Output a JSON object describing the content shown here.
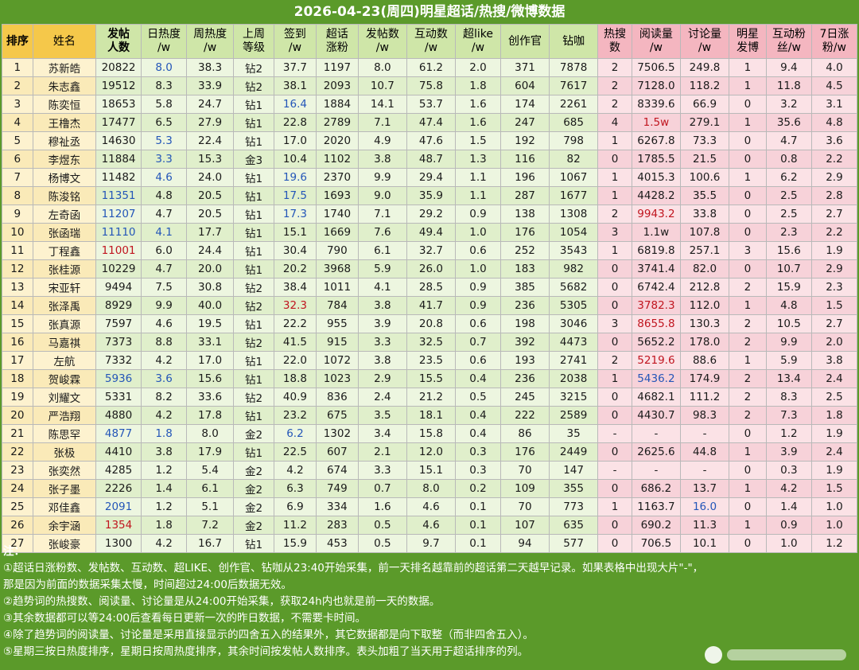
{
  "title": "2026-04-23(周四)明星超话/热搜/微博数据",
  "headers": [
    {
      "line1": "排序",
      "line2": "",
      "bg": "y",
      "bold": true
    },
    {
      "line1": "姓名",
      "line2": "",
      "bg": "y",
      "bold": false
    },
    {
      "line1": "发帖",
      "line2": "人数",
      "bg": "g",
      "bold": true
    },
    {
      "line1": "日热度",
      "line2": "/w",
      "bg": "g",
      "bold": false
    },
    {
      "line1": "周热度",
      "line2": "/w",
      "bg": "g",
      "bold": false
    },
    {
      "line1": "上周",
      "line2": "等级",
      "bg": "g",
      "bold": false
    },
    {
      "line1": "签到",
      "line2": "/w",
      "bg": "g",
      "bold": false
    },
    {
      "line1": "超话",
      "line2": "涨粉",
      "bg": "g",
      "bold": false
    },
    {
      "line1": "发帖数",
      "line2": "/w",
      "bg": "g",
      "bold": false
    },
    {
      "line1": "互动数",
      "line2": "/w",
      "bg": "g",
      "bold": false
    },
    {
      "line1": "超like",
      "line2": "/w",
      "bg": "g",
      "bold": false
    },
    {
      "line1": "创作官",
      "line2": "",
      "bg": "g",
      "bold": false
    },
    {
      "line1": "钻咖",
      "line2": "",
      "bg": "g",
      "bold": false
    },
    {
      "line1": "热搜",
      "line2": "数",
      "bg": "p",
      "bold": false
    },
    {
      "line1": "阅读量",
      "line2": "/w",
      "bg": "p",
      "bold": false
    },
    {
      "line1": "讨论量",
      "line2": "/w",
      "bg": "p",
      "bold": false
    },
    {
      "line1": "明星",
      "line2": "发博",
      "bg": "p",
      "bold": false
    },
    {
      "line1": "互动粉",
      "line2": "丝/w",
      "bg": "p",
      "bold": false
    },
    {
      "line1": "7日涨",
      "line2": "粉/w",
      "bg": "p",
      "bold": false
    }
  ],
  "rows": [
    [
      "1",
      "苏新皓",
      "20822",
      "8.0",
      "38.3",
      "钻2",
      "37.7",
      "1197",
      "8.0",
      "61.2",
      "2.0",
      "371",
      "7878",
      "2",
      "7506.5",
      "249.8",
      "1",
      "9.4",
      "4.0"
    ],
    [
      "2",
      "朱志鑫",
      "19512",
      "8.3",
      "33.9",
      "钻2",
      "38.1",
      "2093",
      "10.7",
      "75.8",
      "1.8",
      "604",
      "7617",
      "2",
      "7128.0",
      "118.2",
      "1",
      "11.8",
      "4.5"
    ],
    [
      "3",
      "陈奕恒",
      "18653",
      "5.8",
      "24.7",
      "钻1",
      "16.4",
      "1884",
      "14.1",
      "53.7",
      "1.6",
      "174",
      "2261",
      "2",
      "8339.6",
      "66.9",
      "0",
      "3.2",
      "3.1"
    ],
    [
      "4",
      "王橹杰",
      "17477",
      "6.5",
      "27.9",
      "钻1",
      "22.8",
      "2789",
      "7.1",
      "47.4",
      "1.6",
      "247",
      "685",
      "4",
      "1.5w",
      "279.1",
      "1",
      "35.6",
      "4.8"
    ],
    [
      "5",
      "穆祉丞",
      "14630",
      "5.3",
      "22.4",
      "钻1",
      "17.0",
      "2020",
      "4.9",
      "47.6",
      "1.5",
      "192",
      "798",
      "1",
      "6267.8",
      "73.3",
      "0",
      "4.7",
      "3.6"
    ],
    [
      "6",
      "李煜东",
      "11884",
      "3.3",
      "15.3",
      "金3",
      "10.4",
      "1102",
      "3.8",
      "48.7",
      "1.3",
      "116",
      "82",
      "0",
      "1785.5",
      "21.5",
      "0",
      "0.8",
      "2.2"
    ],
    [
      "7",
      "杨博文",
      "11482",
      "4.6",
      "24.0",
      "钻1",
      "19.6",
      "2370",
      "9.9",
      "29.4",
      "1.1",
      "196",
      "1067",
      "1",
      "4015.3",
      "100.6",
      "1",
      "6.2",
      "2.9"
    ],
    [
      "8",
      "陈浚铭",
      "11351",
      "4.8",
      "20.5",
      "钻1",
      "17.5",
      "1693",
      "9.0",
      "35.9",
      "1.1",
      "287",
      "1677",
      "1",
      "4428.2",
      "35.5",
      "0",
      "2.5",
      "2.8"
    ],
    [
      "9",
      "左奇函",
      "11207",
      "4.7",
      "20.5",
      "钻1",
      "17.3",
      "1740",
      "7.1",
      "29.2",
      "0.9",
      "138",
      "1308",
      "2",
      "9943.2",
      "33.8",
      "0",
      "2.5",
      "2.7"
    ],
    [
      "10",
      "张函瑞",
      "11110",
      "4.1",
      "17.7",
      "钻1",
      "15.1",
      "1669",
      "7.6",
      "49.4",
      "1.0",
      "176",
      "1054",
      "3",
      "1.1w",
      "107.8",
      "0",
      "2.3",
      "2.2"
    ],
    [
      "11",
      "丁程鑫",
      "11001",
      "6.0",
      "24.4",
      "钻1",
      "30.4",
      "790",
      "6.1",
      "32.7",
      "0.6",
      "252",
      "3543",
      "1",
      "6819.8",
      "257.1",
      "3",
      "15.6",
      "1.9"
    ],
    [
      "12",
      "张桂源",
      "10229",
      "4.7",
      "20.0",
      "钻1",
      "20.2",
      "3968",
      "5.9",
      "26.0",
      "1.0",
      "183",
      "982",
      "0",
      "3741.4",
      "82.0",
      "0",
      "10.7",
      "2.9"
    ],
    [
      "13",
      "宋亚轩",
      "9494",
      "7.5",
      "30.8",
      "钻2",
      "38.4",
      "1011",
      "4.1",
      "28.5",
      "0.9",
      "385",
      "5682",
      "0",
      "6742.4",
      "212.8",
      "2",
      "15.9",
      "2.3"
    ],
    [
      "14",
      "张泽禹",
      "8929",
      "9.9",
      "40.0",
      "钻2",
      "32.3",
      "784",
      "3.8",
      "41.7",
      "0.9",
      "236",
      "5305",
      "0",
      "3782.3",
      "112.0",
      "1",
      "4.8",
      "1.5"
    ],
    [
      "15",
      "张真源",
      "7597",
      "4.6",
      "19.5",
      "钻1",
      "22.2",
      "955",
      "3.9",
      "20.8",
      "0.6",
      "198",
      "3046",
      "3",
      "8655.8",
      "130.3",
      "2",
      "10.5",
      "2.7"
    ],
    [
      "16",
      "马嘉祺",
      "7373",
      "8.8",
      "33.1",
      "钻2",
      "41.5",
      "915",
      "3.3",
      "32.5",
      "0.7",
      "392",
      "4473",
      "0",
      "5652.2",
      "178.0",
      "2",
      "9.9",
      "2.0"
    ],
    [
      "17",
      "左航",
      "7332",
      "4.2",
      "17.0",
      "钻1",
      "22.0",
      "1072",
      "3.8",
      "23.5",
      "0.6",
      "193",
      "2741",
      "2",
      "5219.6",
      "88.6",
      "1",
      "5.9",
      "3.8"
    ],
    [
      "18",
      "贺峻霖",
      "5936",
      "3.6",
      "15.6",
      "钻1",
      "18.8",
      "1023",
      "2.9",
      "15.5",
      "0.4",
      "236",
      "2038",
      "1",
      "5436.2",
      "174.9",
      "2",
      "13.4",
      "2.4"
    ],
    [
      "19",
      "刘耀文",
      "5331",
      "8.2",
      "33.6",
      "钻2",
      "40.9",
      "836",
      "2.4",
      "21.2",
      "0.5",
      "245",
      "3215",
      "0",
      "4682.1",
      "111.2",
      "2",
      "8.3",
      "2.5"
    ],
    [
      "20",
      "严浩翔",
      "4880",
      "4.2",
      "17.8",
      "钻1",
      "23.2",
      "675",
      "3.5",
      "18.1",
      "0.4",
      "222",
      "2589",
      "0",
      "4430.7",
      "98.3",
      "2",
      "7.3",
      "1.8"
    ],
    [
      "21",
      "陈思罕",
      "4877",
      "1.8",
      "8.0",
      "金2",
      "6.2",
      "1302",
      "3.4",
      "15.8",
      "0.4",
      "86",
      "35",
      "-",
      "-",
      "-",
      "0",
      "1.2",
      "1.9"
    ],
    [
      "22",
      "张极",
      "4410",
      "3.8",
      "17.9",
      "钻1",
      "22.5",
      "607",
      "2.1",
      "12.0",
      "0.3",
      "176",
      "2449",
      "0",
      "2625.6",
      "44.8",
      "1",
      "3.9",
      "2.4"
    ],
    [
      "23",
      "张奕然",
      "4285",
      "1.2",
      "5.4",
      "金2",
      "4.2",
      "674",
      "3.3",
      "15.1",
      "0.3",
      "70",
      "147",
      "-",
      "-",
      "-",
      "0",
      "0.3",
      "1.9"
    ],
    [
      "24",
      "张子墨",
      "2226",
      "1.4",
      "6.1",
      "金2",
      "6.3",
      "749",
      "0.7",
      "8.0",
      "0.2",
      "109",
      "355",
      "0",
      "686.2",
      "13.7",
      "1",
      "4.2",
      "1.5"
    ],
    [
      "25",
      "邓佳鑫",
      "2091",
      "1.2",
      "5.1",
      "金2",
      "6.9",
      "334",
      "1.6",
      "4.6",
      "0.1",
      "70",
      "773",
      "1",
      "1163.7",
      "16.0",
      "0",
      "1.4",
      "1.0"
    ],
    [
      "26",
      "余宇涵",
      "1354",
      "1.8",
      "7.2",
      "金2",
      "11.2",
      "283",
      "0.5",
      "4.6",
      "0.1",
      "107",
      "635",
      "0",
      "690.2",
      "11.3",
      "1",
      "0.9",
      "1.0"
    ],
    [
      "27",
      "张峻豪",
      "1300",
      "4.2",
      "16.7",
      "钻1",
      "15.9",
      "453",
      "0.5",
      "9.7",
      "0.1",
      "94",
      "577",
      "0",
      "706.5",
      "10.1",
      "0",
      "1.0",
      "1.2"
    ]
  ],
  "highlights": {
    "blue": [
      "1-3",
      "3-6",
      "5-3",
      "6-3",
      "7-3",
      "7-6",
      "8-2",
      "8-6",
      "9-2",
      "9-6",
      "10-2",
      "10-3",
      "18-2",
      "18-3",
      "18-14",
      "21-2",
      "21-3",
      "21-6",
      "25-2",
      "25-15"
    ],
    "red": [
      "4-14",
      "9-14",
      "11-2",
      "14-6",
      "14-14",
      "15-14",
      "17-14",
      "26-2"
    ],
    "colors": {
      "blue": "#2456b8",
      "red": "#c0151f"
    }
  },
  "notes": {
    "heading": "注：",
    "lines": [
      "①超话日涨粉数、发帖数、互动数、超LIKE、创作官、钻咖从23:40开始采集，前一天排名越靠前的超话第二天越早记录。如果表格中出现大片\"-\"，",
      "那是因为前面的数据采集太慢，时间超过24:00后数据无效。",
      "②趋势词的热搜数、阅读量、讨论量是从24:00开始采集，获取24h内也就是前一天的数据。",
      "③其余数据都可以等24:00后查看每日更新一次的昨日数据，不需要卡时间。",
      "④除了趋势词的阅读量、讨论量是采用直接显示的四舍五入的结果外，其它数据都是向下取整（而非四舍五入）。",
      "⑤星期三按日热度排序，星期日按周热度排序，其余时间按发帖人数排序。表头加粗了当天用于超话排序的列。"
    ]
  },
  "colors": {
    "page_bg": "#5b9a2a",
    "header_yellow": "#f5c84a",
    "header_green": "#cfe6a8",
    "header_pink": "#f4b6c0"
  }
}
